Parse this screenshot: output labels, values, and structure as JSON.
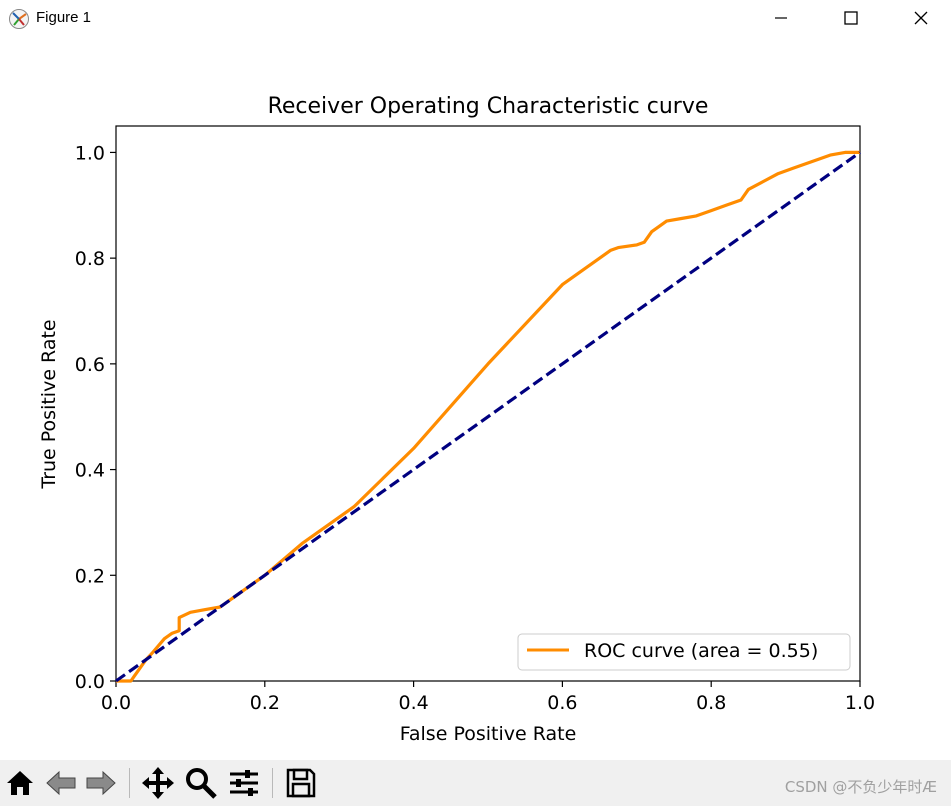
{
  "window": {
    "title": "Figure 1",
    "icons": [
      "matplotlib-logo-icon",
      "minimize-icon",
      "maximize-icon",
      "close-icon"
    ]
  },
  "toolbar": {
    "buttons": [
      "home-icon",
      "back-icon",
      "forward-icon",
      "pan-icon",
      "zoom-icon",
      "configure-subplots-icon",
      "save-icon"
    ],
    "watermark": "CSDN @不负少年时Æ"
  },
  "chart_data": {
    "type": "line",
    "title": "Receiver Operating Characteristic curve",
    "xlabel": "False Positive Rate",
    "ylabel": "True Positive Rate",
    "xlim": [
      0.0,
      1.0
    ],
    "ylim": [
      0.0,
      1.05
    ],
    "xticks": [
      "0.0",
      "0.2",
      "0.4",
      "0.6",
      "0.8",
      "1.0"
    ],
    "yticks": [
      "0.0",
      "0.2",
      "0.4",
      "0.6",
      "0.8",
      "1.0"
    ],
    "legend_position": "lower right",
    "grid": false,
    "series": [
      {
        "name": "ROC curve (area = 0.55)",
        "color": "#ff8c00",
        "style": "solid",
        "x": [
          0.0,
          0.02,
          0.025,
          0.04,
          0.05,
          0.065,
          0.075,
          0.085,
          0.085,
          0.1,
          0.12,
          0.14,
          0.15,
          0.2,
          0.25,
          0.32,
          0.4,
          0.5,
          0.6,
          0.665,
          0.675,
          0.7,
          0.71,
          0.72,
          0.73,
          0.74,
          0.76,
          0.78,
          0.8,
          0.82,
          0.84,
          0.85,
          0.87,
          0.89,
          0.91,
          0.93,
          0.95,
          0.96,
          0.98,
          1.0
        ],
        "y": [
          0.0,
          0.0,
          0.01,
          0.04,
          0.055,
          0.08,
          0.09,
          0.095,
          0.12,
          0.13,
          0.135,
          0.14,
          0.15,
          0.2,
          0.26,
          0.33,
          0.44,
          0.6,
          0.75,
          0.815,
          0.82,
          0.825,
          0.83,
          0.85,
          0.86,
          0.87,
          0.875,
          0.88,
          0.89,
          0.9,
          0.91,
          0.93,
          0.945,
          0.96,
          0.97,
          0.98,
          0.99,
          0.995,
          1.0,
          1.0
        ]
      },
      {
        "name": "",
        "color": "#000080",
        "style": "dashed",
        "x": [
          0.0,
          1.0
        ],
        "y": [
          0.0,
          1.0
        ]
      }
    ]
  }
}
